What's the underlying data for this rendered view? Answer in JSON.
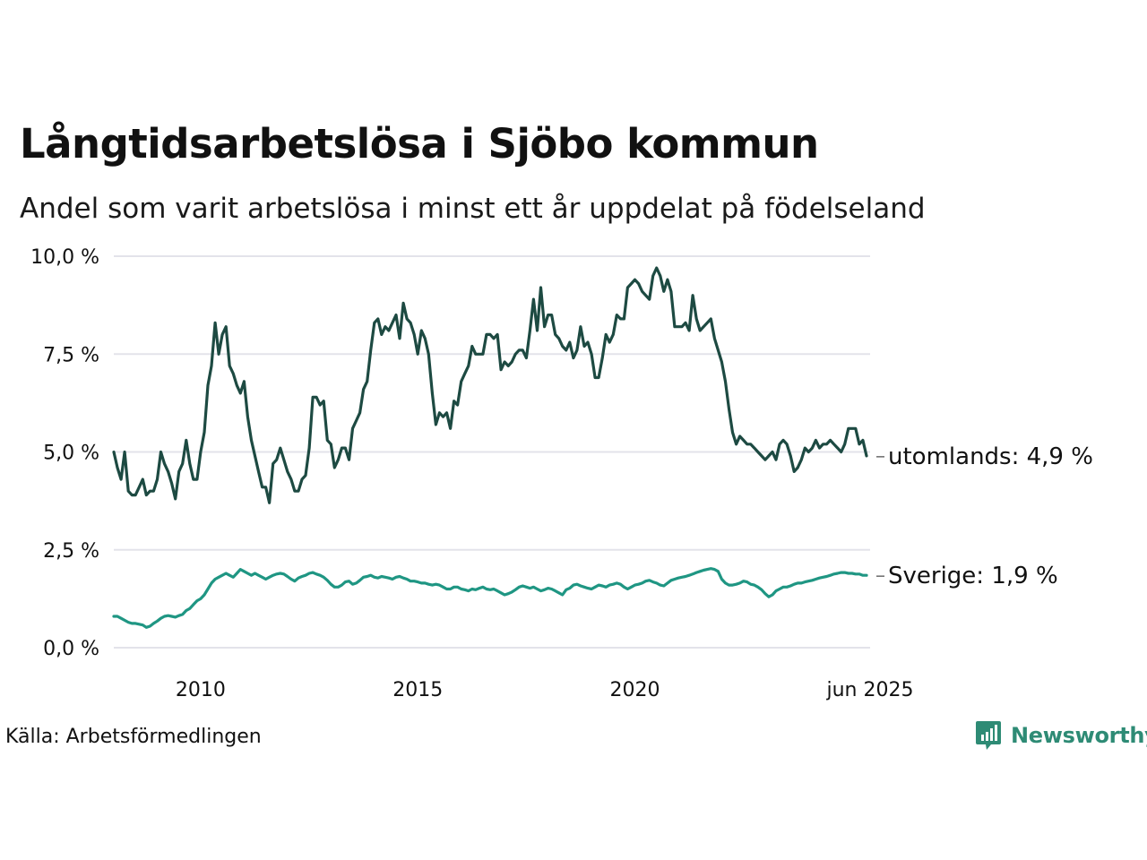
{
  "title": "Långtidsarbetslösa i Sjöbo kommun",
  "subtitle": "Andel som varit arbetslösa i minst ett år uppdelat på födelseland",
  "source": "Källa: Arbetsförmedlingen",
  "brand": "Newsworthy",
  "colors": {
    "utomlands": "#1d4a42",
    "sverige": "#1f9683",
    "grid": "#e3e3ea",
    "brand": "#2e8b75"
  },
  "icons": {
    "brand_logo": "newsworthy-logo-icon"
  },
  "chart_data": {
    "type": "line",
    "ylim": [
      0,
      10
    ],
    "y_ticks": [
      0,
      2.5,
      5,
      7.5,
      10
    ],
    "y_tick_labels": [
      "0,0 %",
      "2,5 %",
      "5,0 %",
      "7,5 %",
      "10,0 %"
    ],
    "x_range": [
      "2008-01",
      "2025-06"
    ],
    "x_ticks": [
      "2010-01",
      "2015-01",
      "2020-01",
      "2025-06"
    ],
    "x_tick_labels": [
      "2010",
      "2015",
      "2020",
      "jun 2025"
    ],
    "grid": true,
    "legend": "end-of-line labels",
    "series": [
      {
        "name": "utomlands",
        "end_label": "utomlands: 4,9 %",
        "start": "2008-01",
        "values": [
          5.0,
          4.6,
          4.3,
          5.0,
          4.0,
          3.9,
          3.9,
          4.1,
          4.3,
          3.9,
          4.0,
          4.0,
          4.3,
          5.0,
          4.7,
          4.5,
          4.2,
          3.8,
          4.5,
          4.7,
          5.3,
          4.7,
          4.3,
          4.3,
          5.0,
          5.5,
          6.7,
          7.2,
          8.3,
          7.5,
          8.0,
          8.2,
          7.2,
          7.0,
          6.7,
          6.5,
          6.8,
          5.9,
          5.3,
          4.9,
          4.5,
          4.1,
          4.1,
          3.7,
          4.7,
          4.8,
          5.1,
          4.8,
          4.5,
          4.3,
          4.0,
          4.0,
          4.3,
          4.4,
          5.1,
          6.4,
          6.4,
          6.2,
          6.3,
          5.3,
          5.2,
          4.6,
          4.8,
          5.1,
          5.1,
          4.8,
          5.6,
          5.8,
          6.0,
          6.6,
          6.8,
          7.6,
          8.3,
          8.4,
          8.0,
          8.2,
          8.1,
          8.3,
          8.5,
          7.9,
          8.8,
          8.4,
          8.3,
          8.0,
          7.5,
          8.1,
          7.9,
          7.5,
          6.5,
          5.7,
          6.0,
          5.9,
          6.0,
          5.6,
          6.3,
          6.2,
          6.8,
          7.0,
          7.2,
          7.7,
          7.5,
          7.5,
          7.5,
          8.0,
          8.0,
          7.9,
          8.0,
          7.1,
          7.3,
          7.2,
          7.3,
          7.5,
          7.6,
          7.6,
          7.4,
          8.1,
          8.9,
          8.1,
          9.2,
          8.2,
          8.5,
          8.5,
          8.0,
          7.9,
          7.7,
          7.6,
          7.8,
          7.4,
          7.6,
          8.2,
          7.7,
          7.8,
          7.5,
          6.9,
          6.9,
          7.4,
          8.0,
          7.8,
          8.0,
          8.5,
          8.4,
          8.4,
          9.2,
          9.3,
          9.4,
          9.3,
          9.1,
          9.0,
          8.9,
          9.5,
          9.7,
          9.5,
          9.1,
          9.4,
          9.1,
          8.2,
          8.2,
          8.2,
          8.3,
          8.1,
          9.0,
          8.4,
          8.1,
          8.2,
          8.3,
          8.4,
          7.9,
          7.6,
          7.3,
          6.8,
          6.1,
          5.5,
          5.2,
          5.4,
          5.3,
          5.2,
          5.2,
          5.1,
          5.0,
          4.9,
          4.8,
          4.9,
          5.0,
          4.8,
          5.2,
          5.3,
          5.2,
          4.9,
          4.5,
          4.6,
          4.8,
          5.1,
          5.0,
          5.1,
          5.3,
          5.1,
          5.2,
          5.2,
          5.3,
          5.2,
          5.1,
          5.0,
          5.2,
          5.6,
          5.6,
          5.6,
          5.2,
          5.3,
          4.9
        ]
      },
      {
        "name": "Sverige",
        "end_label": "Sverige: 1,9 %",
        "start": "2008-01",
        "values": [
          0.8,
          0.8,
          0.75,
          0.7,
          0.65,
          0.62,
          0.62,
          0.6,
          0.58,
          0.52,
          0.55,
          0.62,
          0.68,
          0.75,
          0.8,
          0.82,
          0.8,
          0.78,
          0.82,
          0.85,
          0.95,
          1.0,
          1.1,
          1.2,
          1.25,
          1.35,
          1.5,
          1.65,
          1.75,
          1.8,
          1.85,
          1.9,
          1.85,
          1.8,
          1.9,
          2.0,
          1.95,
          1.9,
          1.85,
          1.9,
          1.85,
          1.8,
          1.75,
          1.8,
          1.85,
          1.88,
          1.9,
          1.88,
          1.82,
          1.75,
          1.7,
          1.78,
          1.82,
          1.85,
          1.9,
          1.92,
          1.88,
          1.85,
          1.8,
          1.72,
          1.62,
          1.55,
          1.55,
          1.6,
          1.68,
          1.7,
          1.62,
          1.65,
          1.72,
          1.8,
          1.82,
          1.85,
          1.8,
          1.78,
          1.82,
          1.8,
          1.78,
          1.75,
          1.8,
          1.82,
          1.78,
          1.75,
          1.7,
          1.7,
          1.68,
          1.65,
          1.65,
          1.62,
          1.6,
          1.62,
          1.6,
          1.55,
          1.5,
          1.5,
          1.55,
          1.55,
          1.5,
          1.48,
          1.45,
          1.5,
          1.48,
          1.52,
          1.55,
          1.5,
          1.48,
          1.5,
          1.45,
          1.4,
          1.35,
          1.38,
          1.42,
          1.48,
          1.55,
          1.58,
          1.55,
          1.52,
          1.55,
          1.5,
          1.45,
          1.48,
          1.52,
          1.5,
          1.45,
          1.4,
          1.35,
          1.48,
          1.52,
          1.6,
          1.62,
          1.58,
          1.55,
          1.52,
          1.5,
          1.55,
          1.6,
          1.58,
          1.55,
          1.6,
          1.62,
          1.65,
          1.62,
          1.55,
          1.5,
          1.55,
          1.6,
          1.62,
          1.65,
          1.7,
          1.72,
          1.68,
          1.65,
          1.6,
          1.58,
          1.65,
          1.72,
          1.75,
          1.78,
          1.8,
          1.82,
          1.85,
          1.88,
          1.92,
          1.95,
          1.98,
          2.0,
          2.02,
          2.0,
          1.95,
          1.75,
          1.65,
          1.6,
          1.6,
          1.62,
          1.65,
          1.7,
          1.68,
          1.62,
          1.6,
          1.55,
          1.48,
          1.38,
          1.3,
          1.35,
          1.45,
          1.5,
          1.55,
          1.55,
          1.58,
          1.62,
          1.65,
          1.65,
          1.68,
          1.7,
          1.72,
          1.75,
          1.78,
          1.8,
          1.82,
          1.85,
          1.88,
          1.9,
          1.92,
          1.92,
          1.9,
          1.9,
          1.88,
          1.88,
          1.85,
          1.85
        ]
      }
    ]
  }
}
